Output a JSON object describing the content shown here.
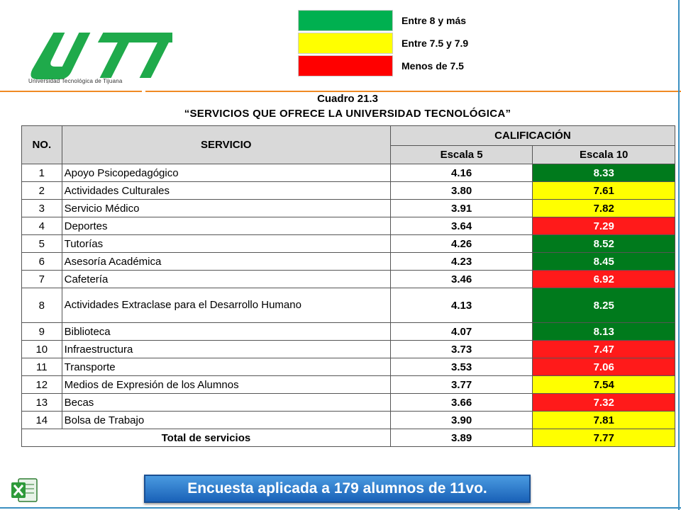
{
  "logo": {
    "text": "UTT",
    "subtitle": "Universidad Tecnológica de Tijuana"
  },
  "legend": [
    {
      "color": "#00b050",
      "label": "Entre 8 y más"
    },
    {
      "color": "#ffff00",
      "label": "Entre 7.5 y 7.9"
    },
    {
      "color": "#ff0000",
      "label": "Menos de 7.5"
    }
  ],
  "title": {
    "line1": "Cuadro 21.3",
    "line2": "“SERVICIOS QUE OFRECE LA UNIVERSIDAD TECNOLÓGICA”"
  },
  "table": {
    "headers": {
      "no": "NO.",
      "servicio": "SERVICIO",
      "calificacion": "CALIFICACIÓN",
      "escala5": "Escala 5",
      "escala10": "Escala 10"
    },
    "colors": {
      "green": "#007a1c",
      "yellow": "#ffff00",
      "red": "#ff1a1a"
    },
    "rows": [
      {
        "no": "1",
        "servicio": "Apoyo Psicopedagógico",
        "e5": "4.16",
        "e10": "8.33",
        "level": "green"
      },
      {
        "no": "2",
        "servicio": "Actividades Culturales",
        "e5": "3.80",
        "e10": "7.61",
        "level": "yellow"
      },
      {
        "no": "3",
        "servicio": "Servicio Médico",
        "e5": "3.91",
        "e10": "7.82",
        "level": "yellow"
      },
      {
        "no": "4",
        "servicio": "Deportes",
        "e5": "3.64",
        "e10": "7.29",
        "level": "red"
      },
      {
        "no": "5",
        "servicio": "Tutorías",
        "e5": "4.26",
        "e10": "8.52",
        "level": "green"
      },
      {
        "no": "6",
        "servicio": "Asesoría Académica",
        "e5": "4.23",
        "e10": "8.45",
        "level": "green"
      },
      {
        "no": "7",
        "servicio": "Cafetería",
        "e5": "3.46",
        "e10": "6.92",
        "level": "red"
      },
      {
        "no": "8",
        "servicio": "Actividades Extraclase para el Desarrollo Humano",
        "e5": "4.13",
        "e10": "8.25",
        "level": "green"
      },
      {
        "no": "9",
        "servicio": "Biblioteca",
        "e5": "4.07",
        "e10": "8.13",
        "level": "green"
      },
      {
        "no": "10",
        "servicio": "Infraestructura",
        "e5": "3.73",
        "e10": "7.47",
        "level": "red"
      },
      {
        "no": "11",
        "servicio": "Transporte",
        "e5": "3.53",
        "e10": "7.06",
        "level": "red"
      },
      {
        "no": "12",
        "servicio": "Medios de Expresión de los Alumnos",
        "e5": "3.77",
        "e10": "7.54",
        "level": "yellow"
      },
      {
        "no": "13",
        "servicio": "Becas",
        "e5": "3.66",
        "e10": "7.32",
        "level": "red"
      },
      {
        "no": "14",
        "servicio": "Bolsa de Trabajo",
        "e5": "3.90",
        "e10": "7.81",
        "level": "yellow"
      }
    ],
    "total": {
      "label": "Total de servicios",
      "e5": "3.89",
      "e10": "7.77",
      "level": "yellow"
    }
  },
  "banner": "Encuesta aplicada a 179 alumnos de 11vo."
}
